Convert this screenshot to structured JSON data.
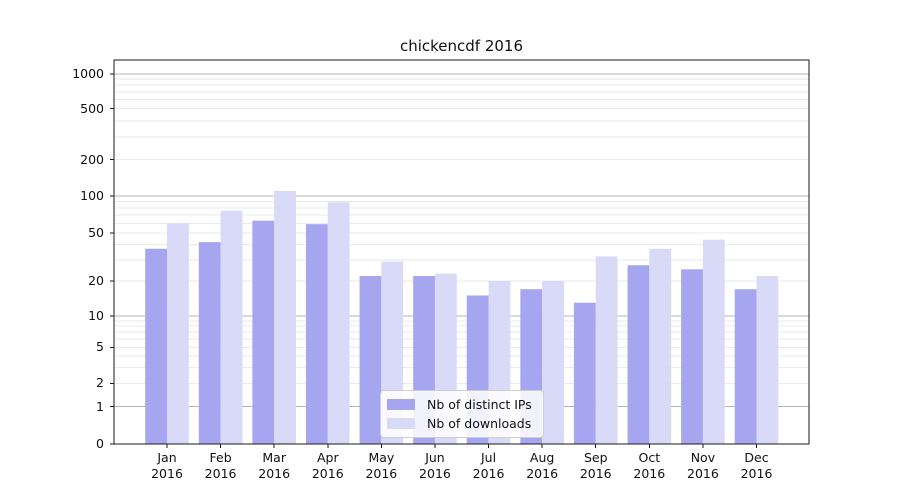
{
  "title": "chickencdf 2016",
  "chart_data": {
    "type": "bar",
    "title": "chickencdf 2016",
    "categories": [
      "Jan 2016",
      "Feb 2016",
      "Mar 2016",
      "Apr 2016",
      "May 2016",
      "Jun 2016",
      "Jul 2016",
      "Aug 2016",
      "Sep 2016",
      "Oct 2016",
      "Nov 2016",
      "Dec 2016"
    ],
    "x_tick_top": [
      "Jan",
      "Feb",
      "Mar",
      "Apr",
      "May",
      "Jun",
      "Jul",
      "Aug",
      "Sep",
      "Oct",
      "Nov",
      "Dec"
    ],
    "x_tick_bottom": "2016",
    "series": [
      {
        "name": "Nb of distinct IPs",
        "color": "#a6a6f0",
        "values": [
          37,
          42,
          63,
          59,
          22,
          22,
          15,
          17,
          13,
          27,
          25,
          17
        ]
      },
      {
        "name": "Nb of downloads",
        "color": "#d9d9f8",
        "values": [
          60,
          76,
          110,
          89,
          29,
          23,
          20,
          20,
          32,
          37,
          44,
          22
        ]
      }
    ],
    "yscale": "symlog",
    "yticks": [
      0,
      1,
      2,
      5,
      10,
      20,
      50,
      100,
      200,
      500,
      1000
    ],
    "ylim": [
      0,
      1200
    ],
    "xlabel": "",
    "ylabel": "",
    "grid": "both",
    "grid_major_color": "#b4b4b4",
    "grid_minor_color": "#eaeaea",
    "legend_position": "lower-center"
  }
}
